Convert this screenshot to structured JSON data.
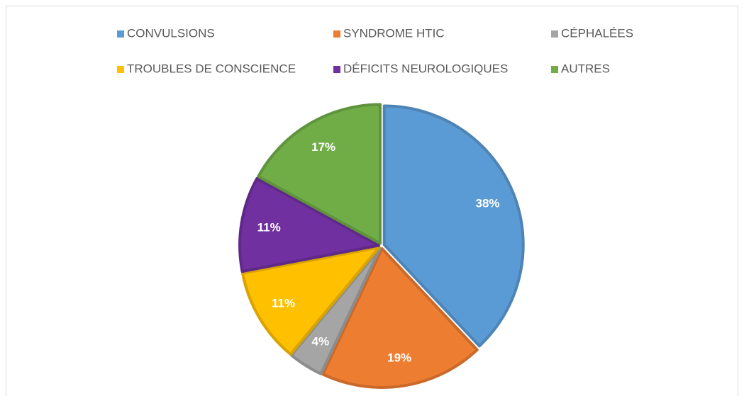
{
  "chart_data": {
    "type": "pie",
    "categories": [
      "CONVULSIONS",
      "SYNDROME HTIC",
      "CÉPHALÉES",
      "TROUBLES DE CONSCIENCE",
      "DÉFICITS NEUROLOGIQUES",
      "AUTRES"
    ],
    "values": [
      38,
      19,
      4,
      11,
      11,
      17
    ],
    "value_labels": [
      "38%",
      "19%",
      "4%",
      "11%",
      "11%",
      "17%"
    ],
    "colors": [
      "#5b9bd5",
      "#ed7d31",
      "#a5a5a5",
      "#ffc000",
      "#7030a0",
      "#70ad47"
    ],
    "legend": "top"
  }
}
